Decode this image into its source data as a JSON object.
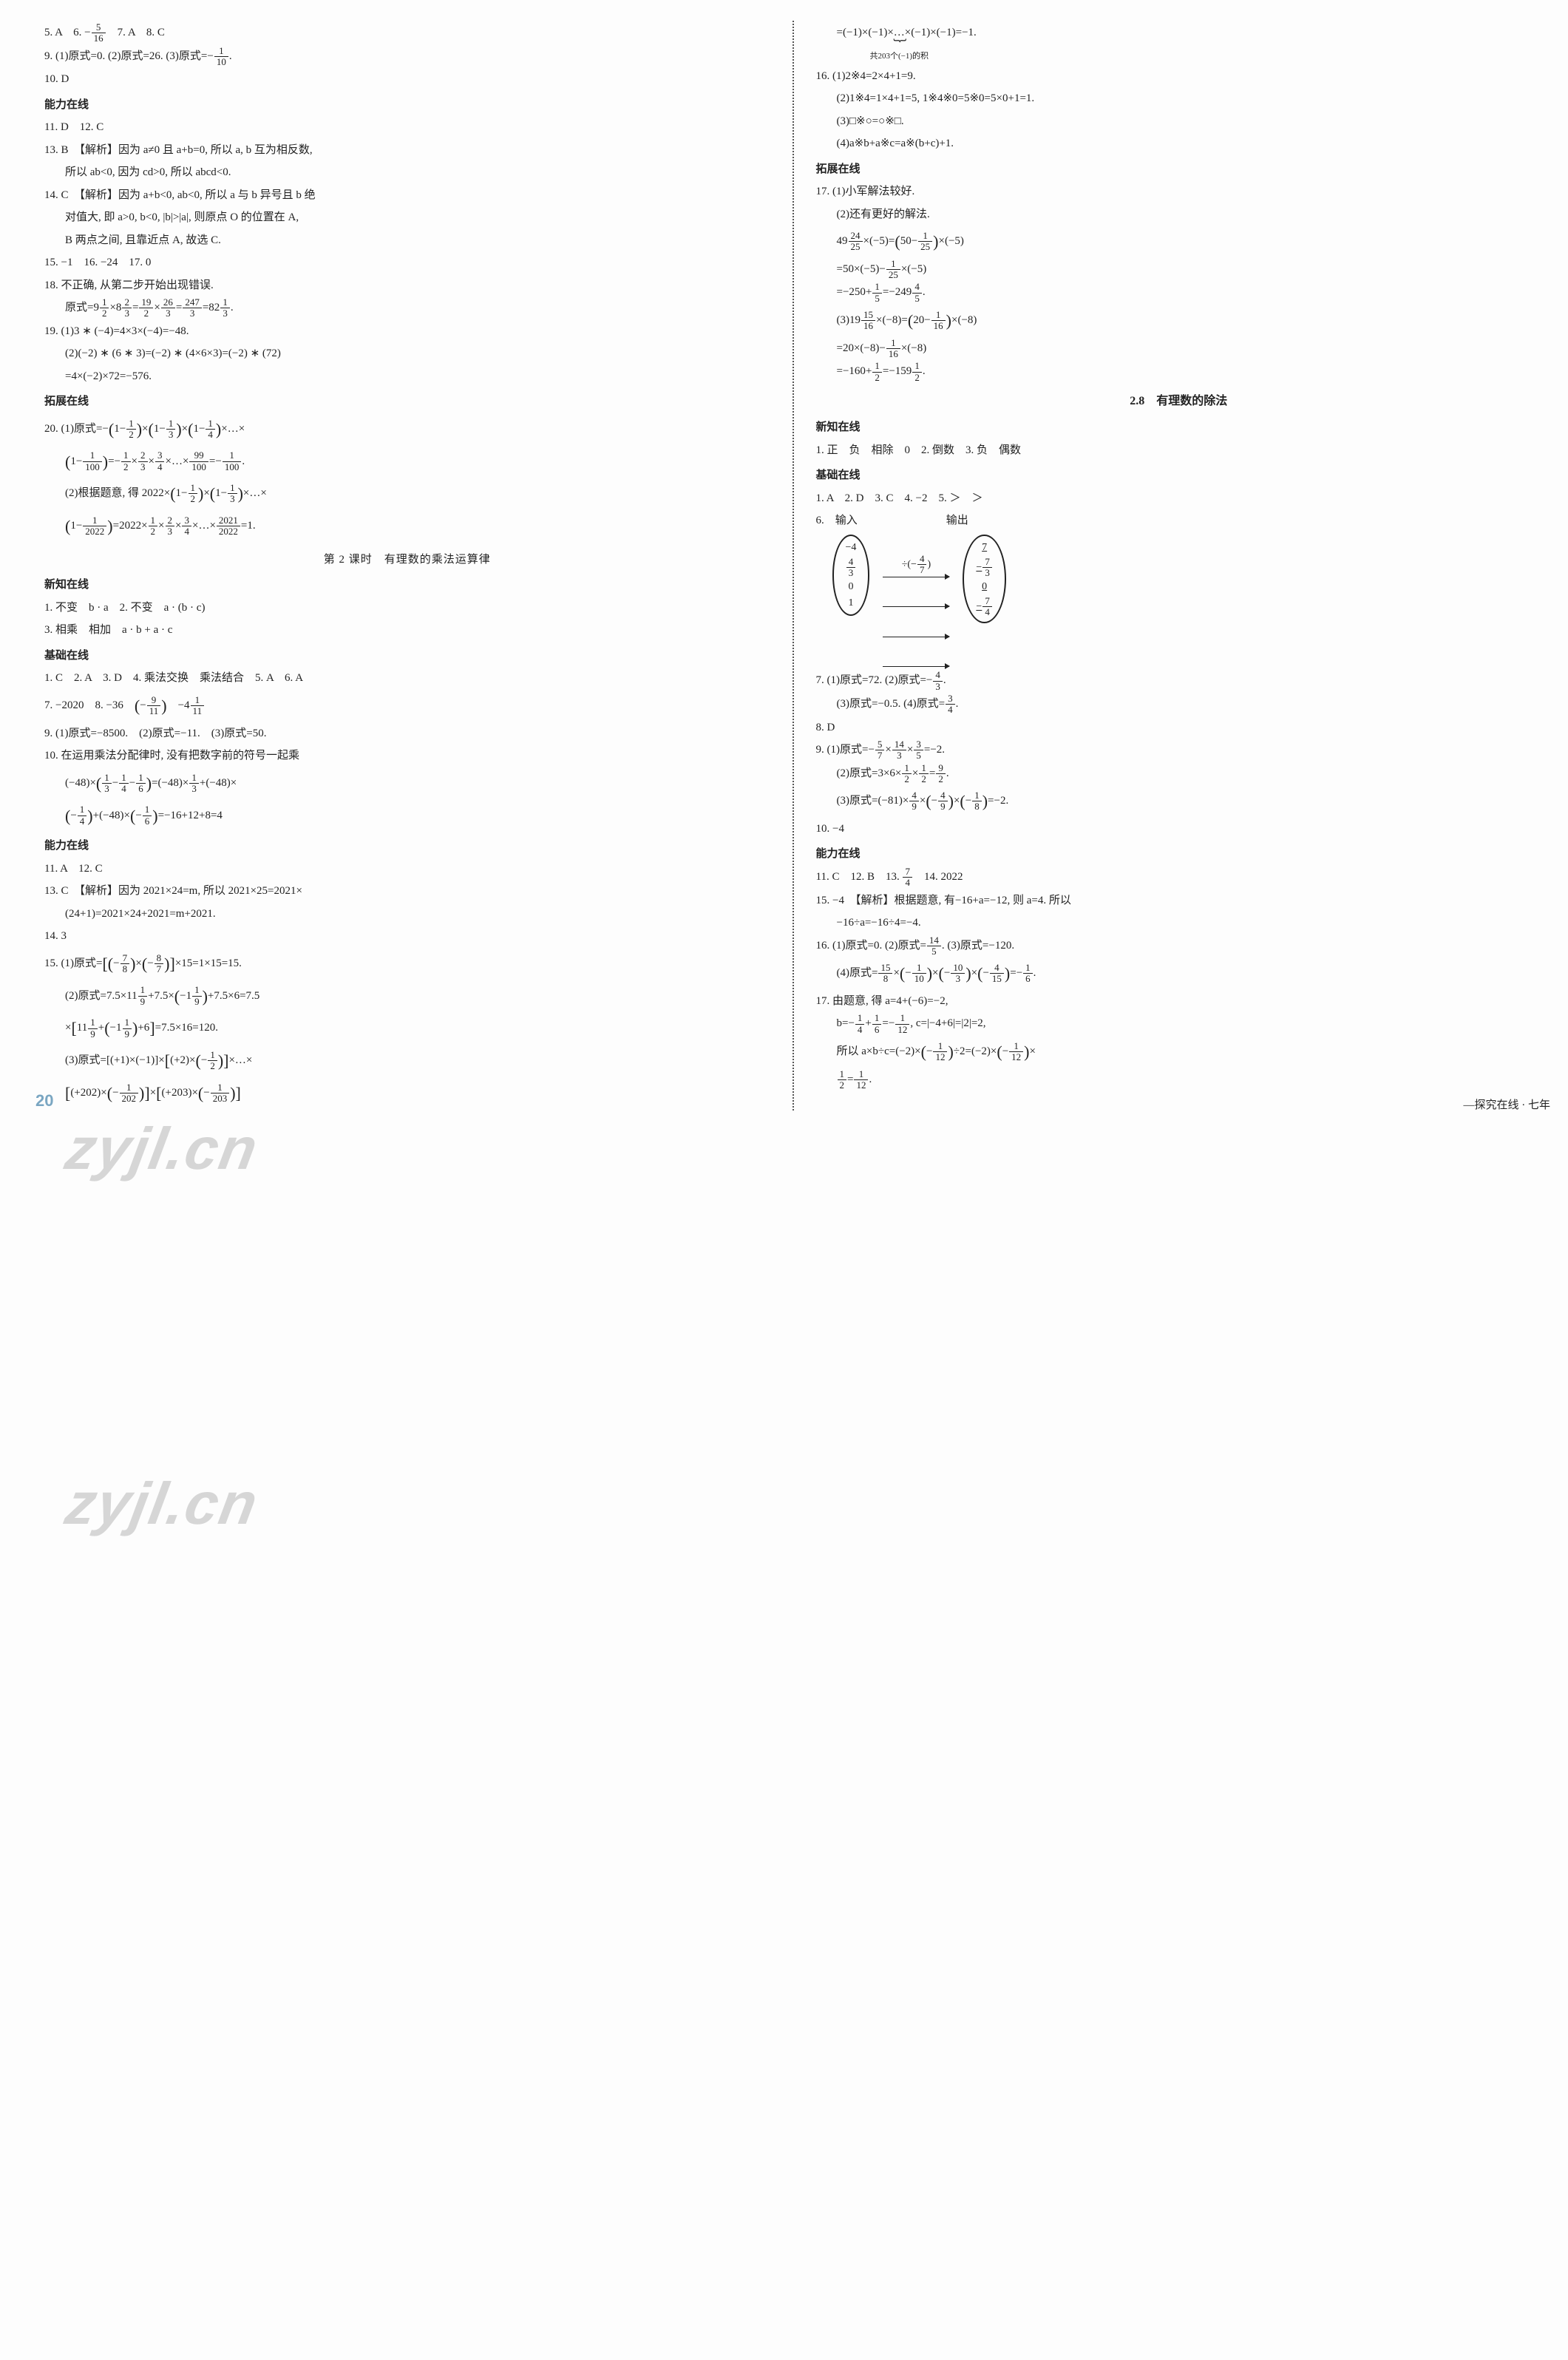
{
  "page_number": "20",
  "footer_right": "—探究在线 · 七年",
  "watermark": "zyjl.cn",
  "left": {
    "l5_8": "5. A　6. − 5/16　7. A　8. C",
    "l9": "9. (1)原式=0. (2)原式=26. (3)原式=− 1/10 .",
    "l10": "10. D",
    "h_ability1": "能力在线",
    "l11_12": "11. D　12. C",
    "l13": "13. B　【解析】因为 a≠0 且 a+b=0, 所以 a, b 互为相反数,",
    "l13b": "所以 ab<0, 因为 cd>0, 所以 abcd<0.",
    "l14": "14. C　【解析】因为 a+b<0, ab<0, 所以 a 与 b 异号且 b 绝",
    "l14b": "对值大, 即 a>0, b<0, |b|>|a|, 则原点 O 的位置在 A,",
    "l14c": "B 两点之间, 且靠近点 A, 故选 C.",
    "l15_17": "15. −1　16. −24　17. 0",
    "l18": "18. 不正确, 从第二步开始出现错误.",
    "l18b": "原式=9 1/2 ×8 2/3 = 19/2 × 26/3 = 247/3 =82 1/3 .",
    "l19a": "19. (1)3 ∗ (−4)=4×3×(−4)=−48.",
    "l19b": "(2)(−2) ∗ (6 ∗ 3)=(−2) ∗ (4×6×3)=(−2) ∗ (72)",
    "l19c": "=4×(−2)×72=−576.",
    "h_ext1": "拓展在线",
    "l20a": "20. (1)原式=−(1− 1/2 )×(1− 1/3 )×(1− 1/4 )×…×",
    "l20b": "(1− 1/100 )=− 1/2 × 2/3 × 3/4 ×…× 99/100 =− 1/100 .",
    "l20c": "(2)根据题意, 得 2022×(1− 1/2 )×(1− 1/3 )×…×",
    "l20d": "(1− 1/2022 )=2022× 1/2 × 2/3 × 3/4 ×…× 2021/2022 =1.",
    "sub1": "第 2 课时　有理数的乘法运算律",
    "h_new1": "新知在线",
    "n1": "1. 不变　b · a　2. 不变　a · (b · c)",
    "n3": "3. 相乘　相加　a · b + a · c",
    "h_base1": "基础在线",
    "b1_6": "1. C　2. A　3. D　4. 乘法交换　乘法结合　5. A　6. A",
    "b7_8": "7. −2020　8. −36　(− 9/11 )　−4 1/11",
    "b9": "9. (1)原式=−8500.　(2)原式=−11.　(3)原式=50.",
    "b10": "10. 在运用乘法分配律时, 没有把数字前的符号一起乘",
    "b10b": "(−48)×( 1/3 − 1/4 − 1/6 )=(−48)× 1/3 +(−48)×",
    "b10c": "(− 1/4 )+(−48)×(− 1/6 )=−16+12+8=4",
    "h_ability2": "能力在线",
    "a11_12": "11. A　12. C",
    "a13": "13. C　【解析】因为 2021×24=m, 所以 2021×25=2021×",
    "a13b": "(24+1)=2021×24+2021=m+2021.",
    "a14": "14. 3",
    "a15a": "15. (1)原式=[ (− 7/8 )×(− 8/7 ) ]×15=1×15=15.",
    "a15b": "(2)原式=7.5×11 1/9 +7.5×(−1 1/9 )+7.5×6=7.5",
    "a15c": "×[ 11 1/9 +(−1 1/9 )+6 ]=7.5×16=120.",
    "a15d": "(3)原式=[(+1)×(−1)]×[ (+2)×(− 1/2 ) ]×…×",
    "a15e": "[ (+202)×(− 1/202 ) ]×[ (+203)×(− 1/203 ) ]"
  },
  "right": {
    "r_top_a": "=(−1)×(−1)×…×(−1)×(−1)=−1.",
    "r_top_under": "共203个(−1)的积",
    "r16a": "16. (1)2※4=2×4+1=9.",
    "r16b": "(2)1※4=1×4+1=5, 1※4※0=5※0=5×0+1=1.",
    "r16c": "(3)□※○=○※□.",
    "r16d": "(4)a※b+a※c=a※(b+c)+1.",
    "h_ext2": "拓展在线",
    "r17a": "17. (1)小军解法较好.",
    "r17b": "(2)还有更好的解法.",
    "r17c": "49 24/25 ×(−5)=(50− 1/25 )×(−5)",
    "r17d": "=50×(−5)− 1/25 ×(−5)",
    "r17e": "=−250+ 1/5 =−249 4/5 .",
    "r17f": "(3)19 15/16 ×(−8)=(20− 1/16 )×(−8)",
    "r17g": "=20×(−8)− 1/16 ×(−8)",
    "r17h": "=−160+ 1/2 =−159 1/2 .",
    "sec28": "2.8　有理数的除法",
    "h_new2": "新知在线",
    "rn1": "1. 正　负　相除　0　2. 倒数　3. 负　偶数",
    "h_base2": "基础在线",
    "rb1_5": "1. A　2. D　3. C　4. −2　5. ＞　＞",
    "rb6": "6.　输入　　　　÷(− 4/7 )　　输出",
    "diagram_in": [
      "−4",
      "4/3",
      "0",
      "1"
    ],
    "diagram_mid": "÷(− 4/7 )",
    "diagram_out": [
      "7",
      "− 7/3",
      "0",
      "− 7/4"
    ],
    "rb7a": "7. (1)原式=72. (2)原式=− 4/3 .",
    "rb7b": "(3)原式=−0.5. (4)原式= 3/4 .",
    "rb8": "8. D",
    "rb9a": "9. (1)原式=− 5/7 × 14/3 × 3/5 =−2.",
    "rb9b": "(2)原式=3×6× 1/2 × 1/2 = 9/2 .",
    "rb9c": "(3)原式=(−81)× 4/9 ×(− 4/9 )×(− 1/8 )=−2.",
    "rb10": "10. −4",
    "h_ability3": "能力在线",
    "ra11_14": "11. C　12. B　13. 7/4　14. 2022",
    "ra15": "15. −4　【解析】根据题意, 有−16+a=−12, 则 a=4. 所以",
    "ra15b": "−16÷a=−16÷4=−4.",
    "ra16": "16. (1)原式=0. (2)原式= 14/5 . (3)原式=−120.",
    "ra16b": "(4)原式= 15/8 ×(− 1/10 )×(− 10/3 )×(− 4/15 )=− 1/6 .",
    "ra17a": "17. 由题意, 得 a=4+(−6)=−2,",
    "ra17b": "b=− 1/4 + 1/6 =− 1/12 , c=|−4+6|=|2|=2,",
    "ra17c": "所以 a×b÷c=(−2)×(− 1/12 )÷2=(−2)×(− 1/12 )×",
    "ra17d": "1/2 = 1/12 ."
  }
}
